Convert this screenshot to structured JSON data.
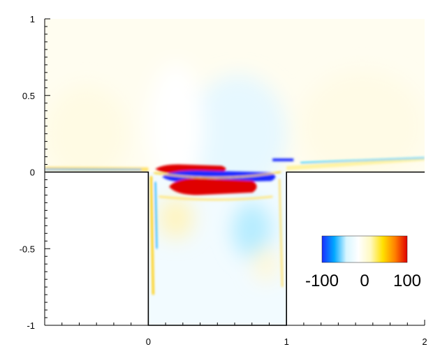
{
  "chart_data": {
    "type": "heatmap",
    "title": "",
    "xlabel": "",
    "ylabel": "",
    "xlim": [
      -0.75,
      2
    ],
    "ylim": [
      -1,
      1
    ],
    "x_ticks": [
      {
        "value": 0,
        "label": "0"
      },
      {
        "value": 1,
        "label": "1"
      },
      {
        "value": 2,
        "label": "2"
      }
    ],
    "y_ticks": [
      {
        "value": 1,
        "label": "1"
      },
      {
        "value": 0.5,
        "label": "0.5"
      },
      {
        "value": 0,
        "label": "0"
      },
      {
        "value": -0.5,
        "label": "-0.5"
      },
      {
        "value": -1,
        "label": "-1"
      }
    ],
    "colorbar": {
      "min": -100,
      "max": 100,
      "labels": [
        {
          "value": -100,
          "label": "-100"
        },
        {
          "value": 0,
          "label": "0"
        },
        {
          "value": 100,
          "label": "100"
        }
      ],
      "colors": [
        "#1a2cff",
        "#00a8ff",
        "#d8f6ff",
        "#ffffff",
        "#fff9c0",
        "#ffe000",
        "#ff8000",
        "#e00000"
      ]
    },
    "domain_boundary": [
      [
        -0.75,
        0
      ],
      [
        0,
        0
      ],
      [
        0,
        -1
      ],
      [
        1,
        -1
      ],
      [
        1,
        0
      ],
      [
        2,
        0
      ]
    ],
    "features": [
      {
        "kind": "shear-layer-band",
        "sign": "positive",
        "x": [
          0.05,
          0.62
        ],
        "y": [
          -0.01,
          0.05
        ],
        "magnitude": 100
      },
      {
        "kind": "shear-layer-band",
        "sign": "negative",
        "x": [
          0.1,
          0.95
        ],
        "y": [
          -0.07,
          0.01
        ],
        "magnitude": -100
      },
      {
        "kind": "shear-layer-band",
        "sign": "positive",
        "x": [
          0.15,
          0.85
        ],
        "y": [
          -0.15,
          -0.04
        ],
        "magnitude": 100
      },
      {
        "kind": "weak-region",
        "sign": "negative",
        "x": [
          0.6,
          0.9
        ],
        "y": [
          -0.5,
          -0.25
        ],
        "magnitude": -15
      },
      {
        "kind": "weak-region",
        "sign": "negative",
        "x": [
          0.35,
          0.85
        ],
        "y": [
          0.15,
          0.5
        ],
        "magnitude": -8
      }
    ]
  }
}
